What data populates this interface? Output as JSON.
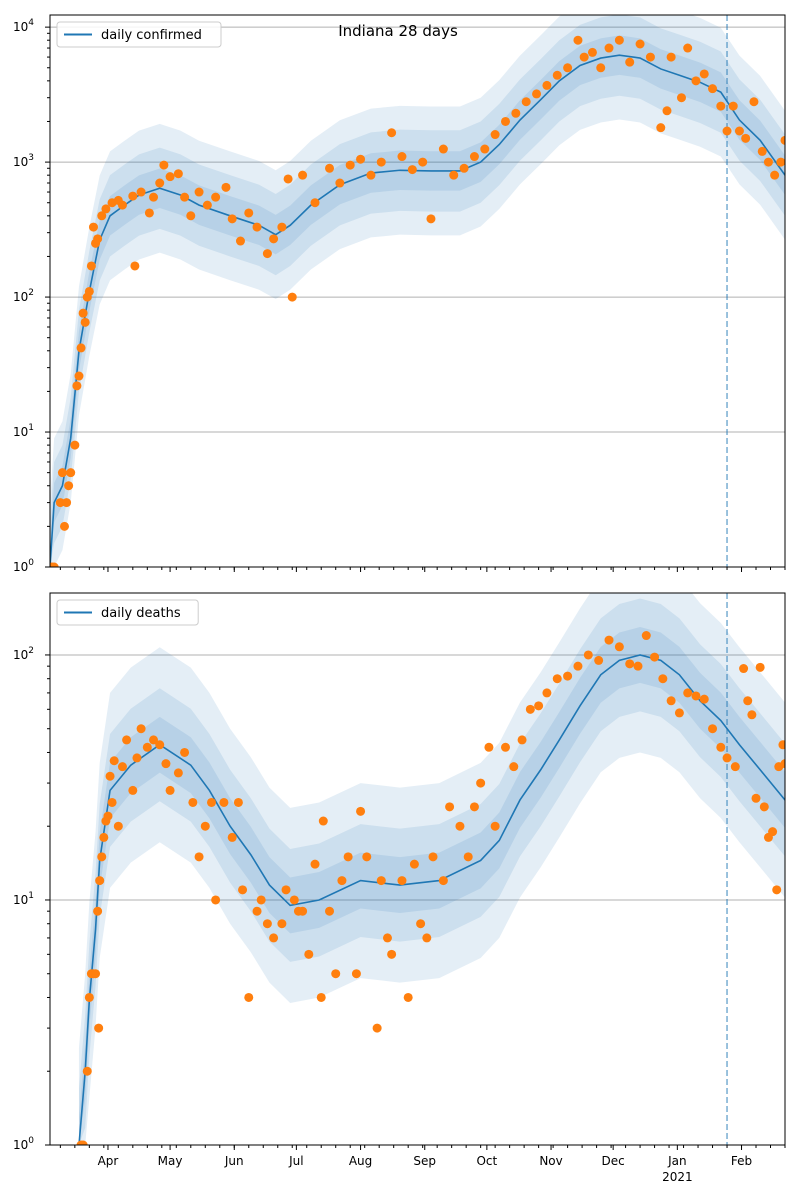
{
  "chart_data": [
    {
      "type": "scatter",
      "title": "Indiana 28 days",
      "legend": {
        "label": "daily confirmed",
        "placement": "top-left"
      },
      "yscale": "log",
      "ylim": [
        1,
        12300
      ],
      "yticks": [
        {
          "base": "10",
          "exp": "0",
          "value": 1
        },
        {
          "base": "10",
          "exp": "1",
          "value": 10
        },
        {
          "base": "10",
          "exp": "2",
          "value": 100
        },
        {
          "base": "10",
          "exp": "3",
          "value": 1000
        },
        {
          "base": "10",
          "exp": "4",
          "value": 10000
        }
      ],
      "grid": true,
      "x_start_date": "2020-03-04",
      "xlim_days": [
        0,
        355
      ],
      "forecast_start_day": 327,
      "line_color": "#1f77b4",
      "point_color": "#ff7f0e",
      "band_factors": [
        3.0,
        2.0,
        1.4
      ],
      "trend": [
        [
          0,
          1
        ],
        [
          2,
          3
        ],
        [
          6,
          4
        ],
        [
          10,
          9
        ],
        [
          14,
          40
        ],
        [
          19,
          110
        ],
        [
          24,
          265
        ],
        [
          29,
          400
        ],
        [
          36,
          480
        ],
        [
          43,
          570
        ],
        [
          53,
          640
        ],
        [
          63,
          570
        ],
        [
          72,
          480
        ],
        [
          87,
          400
        ],
        [
          101,
          340
        ],
        [
          109,
          290
        ],
        [
          116,
          340
        ],
        [
          126,
          480
        ],
        [
          140,
          680
        ],
        [
          155,
          830
        ],
        [
          169,
          870
        ],
        [
          184,
          860
        ],
        [
          198,
          860
        ],
        [
          208,
          1000
        ],
        [
          217,
          1350
        ],
        [
          227,
          2050
        ],
        [
          237,
          2900
        ],
        [
          246,
          4000
        ],
        [
          256,
          5200
        ],
        [
          266,
          5900
        ],
        [
          275,
          6200
        ],
        [
          285,
          5900
        ],
        [
          295,
          4900
        ],
        [
          304,
          4400
        ],
        [
          314,
          3900
        ],
        [
          324,
          3300
        ],
        [
          333,
          2050
        ],
        [
          343,
          1450
        ],
        [
          355,
          800
        ]
      ],
      "observed": [
        [
          1,
          1
        ],
        [
          2,
          1
        ],
        [
          5,
          3
        ],
        [
          6,
          5
        ],
        [
          7,
          2
        ],
        [
          8,
          3
        ],
        [
          9,
          4
        ],
        [
          10,
          5
        ],
        [
          12,
          8
        ],
        [
          13,
          22
        ],
        [
          14,
          26
        ],
        [
          15,
          42
        ],
        [
          16,
          76
        ],
        [
          17,
          65
        ],
        [
          18,
          100
        ],
        [
          19,
          110
        ],
        [
          20,
          170
        ],
        [
          21,
          330
        ],
        [
          22,
          250
        ],
        [
          23,
          270
        ],
        [
          25,
          400
        ],
        [
          27,
          450
        ],
        [
          30,
          500
        ],
        [
          33,
          520
        ],
        [
          35,
          480
        ],
        [
          41,
          170
        ],
        [
          40,
          560
        ],
        [
          44,
          600
        ],
        [
          48,
          420
        ],
        [
          50,
          550
        ],
        [
          53,
          700
        ],
        [
          55,
          950
        ],
        [
          58,
          780
        ],
        [
          62,
          820
        ],
        [
          65,
          550
        ],
        [
          68,
          400
        ],
        [
          72,
          600
        ],
        [
          76,
          480
        ],
        [
          80,
          550
        ],
        [
          85,
          650
        ],
        [
          88,
          380
        ],
        [
          92,
          260
        ],
        [
          96,
          420
        ],
        [
          100,
          330
        ],
        [
          105,
          210
        ],
        [
          108,
          270
        ],
        [
          112,
          330
        ],
        [
          115,
          750
        ],
        [
          117,
          100
        ],
        [
          122,
          800
        ],
        [
          128,
          500
        ],
        [
          135,
          900
        ],
        [
          140,
          700
        ],
        [
          145,
          950
        ],
        [
          150,
          1050
        ],
        [
          155,
          800
        ],
        [
          160,
          1000
        ],
        [
          165,
          1650
        ],
        [
          170,
          1100
        ],
        [
          175,
          880
        ],
        [
          180,
          1000
        ],
        [
          184,
          380
        ],
        [
          190,
          1250
        ],
        [
          195,
          800
        ],
        [
          200,
          900
        ],
        [
          205,
          1100
        ],
        [
          210,
          1250
        ],
        [
          215,
          1600
        ],
        [
          220,
          2000
        ],
        [
          225,
          2300
        ],
        [
          230,
          2800
        ],
        [
          235,
          3200
        ],
        [
          240,
          3700
        ],
        [
          245,
          4400
        ],
        [
          250,
          5000
        ],
        [
          255,
          8000
        ],
        [
          258,
          6000
        ],
        [
          262,
          6500
        ],
        [
          266,
          5000
        ],
        [
          270,
          7000
        ],
        [
          275,
          8000
        ],
        [
          280,
          5500
        ],
        [
          285,
          7500
        ],
        [
          290,
          6000
        ],
        [
          295,
          1800
        ],
        [
          298,
          2400
        ],
        [
          300,
          6000
        ],
        [
          305,
          3000
        ],
        [
          308,
          7000
        ],
        [
          312,
          4000
        ],
        [
          316,
          4500
        ],
        [
          320,
          3500
        ],
        [
          324,
          2600
        ],
        [
          327,
          1700
        ],
        [
          330,
          2600
        ],
        [
          333,
          1700
        ],
        [
          336,
          1500
        ],
        [
          340,
          2800
        ],
        [
          344,
          1200
        ],
        [
          347,
          1000
        ],
        [
          350,
          800
        ],
        [
          353,
          1000
        ],
        [
          355,
          1450
        ]
      ]
    },
    {
      "type": "scatter",
      "legend": {
        "label": "daily deaths",
        "placement": "top-left"
      },
      "yscale": "log",
      "ylim": [
        1,
        179
      ],
      "yticks": [
        {
          "base": "10",
          "exp": "0",
          "value": 1
        },
        {
          "base": "10",
          "exp": "1",
          "value": 10
        },
        {
          "base": "10",
          "exp": "2",
          "value": 100
        }
      ],
      "grid": true,
      "x_start_date": "2020-03-04",
      "xlim_days": [
        0,
        355
      ],
      "forecast_start_day": 327,
      "xticks": [
        {
          "label": "Apr",
          "day": 28
        },
        {
          "label": "May",
          "day": 58
        },
        {
          "label": "Jun",
          "day": 89
        },
        {
          "label": "Jul",
          "day": 119
        },
        {
          "label": "Aug",
          "day": 150
        },
        {
          "label": "Sep",
          "day": 181
        },
        {
          "label": "Oct",
          "day": 211
        },
        {
          "label": "Nov",
          "day": 242
        },
        {
          "label": "Dec",
          "day": 272
        },
        {
          "label": "Jan",
          "day": 303,
          "sub": "2021"
        },
        {
          "label": "Feb",
          "day": 334
        }
      ],
      "line_color": "#1f77b4",
      "point_color": "#ff7f0e",
      "band_factors": [
        2.5,
        1.7,
        1.3
      ],
      "trend": [
        [
          14,
          1
        ],
        [
          17,
          2
        ],
        [
          19,
          3.9
        ],
        [
          22,
          7.6
        ],
        [
          24,
          14.5
        ],
        [
          29,
          28
        ],
        [
          39,
          35.5
        ],
        [
          53,
          43
        ],
        [
          68,
          35.5
        ],
        [
          77,
          28
        ],
        [
          87,
          20
        ],
        [
          97,
          15.3
        ],
        [
          106,
          11.5
        ],
        [
          116,
          9.5
        ],
        [
          130,
          10
        ],
        [
          150,
          12
        ],
        [
          169,
          11.5
        ],
        [
          188,
          12
        ],
        [
          208,
          14.5
        ],
        [
          217,
          17.5
        ],
        [
          227,
          25.6
        ],
        [
          237,
          34
        ],
        [
          246,
          45
        ],
        [
          256,
          62
        ],
        [
          266,
          83
        ],
        [
          275,
          95
        ],
        [
          285,
          100
        ],
        [
          295,
          95
        ],
        [
          304,
          83
        ],
        [
          314,
          65
        ],
        [
          324,
          54
        ],
        [
          333,
          43
        ],
        [
          343,
          34
        ],
        [
          355,
          25.6
        ]
      ],
      "observed": [
        [
          15,
          1
        ],
        [
          16,
          1
        ],
        [
          18,
          2
        ],
        [
          19,
          4
        ],
        [
          20,
          5
        ],
        [
          21,
          5
        ],
        [
          22,
          5
        ],
        [
          23,
          9
        ],
        [
          23.5,
          3
        ],
        [
          24,
          12
        ],
        [
          25,
          15
        ],
        [
          26,
          18
        ],
        [
          27,
          21
        ],
        [
          28,
          22
        ],
        [
          29,
          32
        ],
        [
          30,
          25
        ],
        [
          31,
          37
        ],
        [
          33,
          20
        ],
        [
          35,
          35
        ],
        [
          37,
          45
        ],
        [
          40,
          28
        ],
        [
          42,
          38
        ],
        [
          44,
          50
        ],
        [
          47,
          42
        ],
        [
          50,
          45
        ],
        [
          53,
          43
        ],
        [
          56,
          36
        ],
        [
          58,
          28
        ],
        [
          62,
          33
        ],
        [
          65,
          40
        ],
        [
          69,
          25
        ],
        [
          72,
          15
        ],
        [
          75,
          20
        ],
        [
          78,
          25
        ],
        [
          80,
          10
        ],
        [
          84,
          25
        ],
        [
          88,
          18
        ],
        [
          91,
          25
        ],
        [
          93,
          11
        ],
        [
          96,
          4
        ],
        [
          100,
          9
        ],
        [
          102,
          10
        ],
        [
          105,
          8
        ],
        [
          108,
          7
        ],
        [
          112,
          8
        ],
        [
          114,
          11
        ],
        [
          118,
          10
        ],
        [
          120,
          9
        ],
        [
          122,
          9
        ],
        [
          125,
          6
        ],
        [
          128,
          14
        ],
        [
          131,
          4
        ],
        [
          132,
          21
        ],
        [
          135,
          9
        ],
        [
          138,
          5
        ],
        [
          141,
          12
        ],
        [
          144,
          15
        ],
        [
          148,
          5
        ],
        [
          150,
          23
        ],
        [
          153,
          15
        ],
        [
          158,
          3
        ],
        [
          160,
          12
        ],
        [
          163,
          7
        ],
        [
          165,
          6
        ],
        [
          170,
          12
        ],
        [
          173,
          4
        ],
        [
          176,
          14
        ],
        [
          179,
          8
        ],
        [
          182,
          7
        ],
        [
          185,
          15
        ],
        [
          190,
          12
        ],
        [
          193,
          24
        ],
        [
          198,
          20
        ],
        [
          202,
          15
        ],
        [
          205,
          24
        ],
        [
          208,
          30
        ],
        [
          212,
          42
        ],
        [
          215,
          20
        ],
        [
          220,
          42
        ],
        [
          224,
          35
        ],
        [
          228,
          45
        ],
        [
          232,
          60
        ],
        [
          236,
          62
        ],
        [
          240,
          70
        ],
        [
          245,
          80
        ],
        [
          250,
          82
        ],
        [
          255,
          90
        ],
        [
          260,
          100
        ],
        [
          265,
          95
        ],
        [
          270,
          115
        ],
        [
          275,
          108
        ],
        [
          280,
          92
        ],
        [
          284,
          90
        ],
        [
          288,
          120
        ],
        [
          292,
          98
        ],
        [
          296,
          80
        ],
        [
          300,
          65
        ],
        [
          304,
          58
        ],
        [
          308,
          70
        ],
        [
          312,
          68
        ],
        [
          316,
          66
        ],
        [
          320,
          50
        ],
        [
          324,
          42
        ],
        [
          327,
          38
        ],
        [
          331,
          35
        ],
        [
          335,
          88
        ],
        [
          337,
          65
        ],
        [
          339,
          57
        ],
        [
          341,
          26
        ],
        [
          343,
          89
        ],
        [
          345,
          24
        ],
        [
          347,
          18
        ],
        [
          349,
          19
        ],
        [
          351,
          11
        ],
        [
          352,
          35
        ],
        [
          354,
          43
        ],
        [
          355,
          36
        ]
      ]
    }
  ]
}
